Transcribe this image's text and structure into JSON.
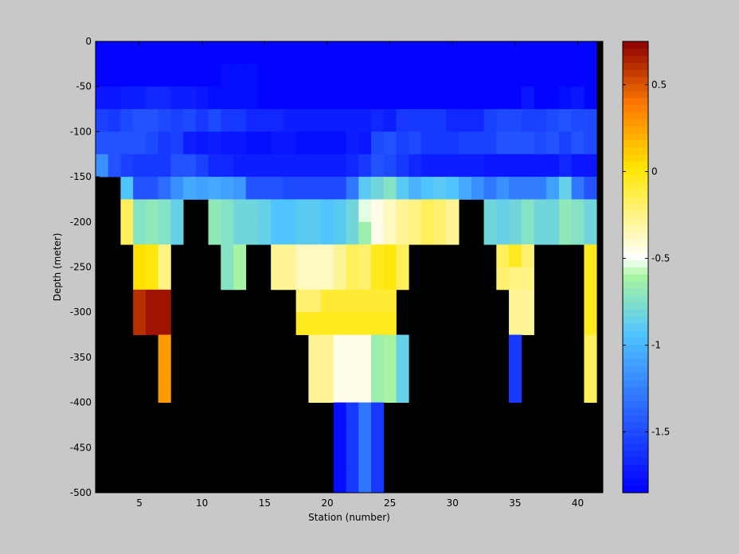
{
  "chart_data": {
    "type": "heatmap",
    "title": "",
    "xlabel": "Station (number)",
    "ylabel": "Depth (meter)",
    "xlim": [
      1.5,
      42
    ],
    "ylim": [
      -500,
      0
    ],
    "xticks": [
      5,
      10,
      15,
      20,
      25,
      30,
      35,
      40
    ],
    "yticks": [
      0,
      -50,
      -100,
      -150,
      -200,
      -250,
      -300,
      -350,
      -400,
      -450,
      -500
    ],
    "x_start_station": 2,
    "depth_levels": [
      0,
      -25,
      -50,
      -75,
      -100,
      -125,
      -150,
      -175,
      -200,
      -225,
      -250,
      -275,
      -300,
      -325,
      -350,
      -375,
      -400,
      -425,
      -450,
      -475
    ],
    "no_data_color": "#000000",
    "colorbar": {
      "clim": [
        -1.85,
        0.75
      ],
      "ticks": [
        0.5,
        0,
        -0.5,
        -1,
        -1.5
      ],
      "tick_labels": [
        "0.5",
        "0",
        "-0.5",
        "-1",
        "-1.5"
      ],
      "colormap": "jet-modified",
      "stops": [
        [
          0.0,
          "#0000ff"
        ],
        [
          0.35,
          "#4fc3ff"
        ],
        [
          0.48,
          "#a8f5a0"
        ],
        [
          0.52,
          "#ffffff"
        ],
        [
          0.72,
          "#ffe600"
        ],
        [
          0.86,
          "#ff7a00"
        ],
        [
          1.0,
          "#8b0000"
        ]
      ],
      "levels": 64
    },
    "values": [
      [
        -1.9,
        -1.9,
        -1.9,
        -1.9,
        -1.9,
        -1.9,
        -1.9,
        -1.9,
        -1.9,
        -1.9,
        -1.9,
        -1.9,
        -1.9,
        -1.9,
        -1.9,
        -1.9,
        -1.9,
        -1.9,
        -1.9,
        -1.9,
        -1.9,
        -1.9,
        -1.9,
        -1.9,
        -1.9,
        -1.9,
        -1.9,
        -1.9,
        -1.9,
        -1.9,
        -1.9,
        -1.9,
        -1.9,
        -1.9,
        -1.9,
        -1.9,
        -1.9,
        -1.9,
        -1.9,
        -1.9
      ],
      [
        -1.9,
        -1.9,
        -1.9,
        -1.9,
        -1.9,
        -1.9,
        -1.9,
        -1.9,
        -1.9,
        -1.9,
        -1.8,
        -1.8,
        -1.8,
        -1.9,
        -1.9,
        -1.9,
        -1.9,
        -1.9,
        -1.9,
        -1.9,
        -1.9,
        -1.9,
        -1.9,
        -1.9,
        -1.9,
        -1.9,
        -1.9,
        -1.9,
        -1.9,
        -1.9,
        -1.9,
        -1.9,
        -1.9,
        -1.9,
        -1.9,
        -1.9,
        -1.9,
        -1.9,
        -1.9,
        -1.9
      ],
      [
        -1.75,
        -1.75,
        -1.7,
        -1.7,
        -1.65,
        -1.65,
        -1.7,
        -1.7,
        -1.75,
        -1.8,
        -1.8,
        -1.8,
        -1.8,
        -1.85,
        -1.85,
        -1.85,
        -1.85,
        -1.85,
        -1.85,
        -1.85,
        -1.85,
        -1.85,
        -1.85,
        -1.85,
        -1.85,
        -1.85,
        -1.85,
        -1.85,
        -1.85,
        -1.85,
        -1.85,
        -1.85,
        -1.85,
        -1.85,
        -1.75,
        -1.85,
        -1.85,
        -1.8,
        -1.75,
        -1.85
      ],
      [
        -1.55,
        -1.6,
        -1.5,
        -1.45,
        -1.45,
        -1.5,
        -1.55,
        -1.5,
        -1.6,
        -1.5,
        -1.6,
        -1.6,
        -1.65,
        -1.65,
        -1.65,
        -1.7,
        -1.7,
        -1.7,
        -1.7,
        -1.7,
        -1.7,
        -1.7,
        -1.65,
        -1.7,
        -1.6,
        -1.6,
        -1.6,
        -1.6,
        -1.65,
        -1.65,
        -1.65,
        -1.55,
        -1.5,
        -1.5,
        -1.55,
        -1.55,
        -1.5,
        -1.45,
        -1.5,
        -1.5
      ],
      [
        -1.45,
        -1.45,
        -1.45,
        -1.45,
        -1.5,
        -1.6,
        -1.55,
        -1.7,
        -1.75,
        -1.7,
        -1.75,
        -1.75,
        -1.8,
        -1.8,
        -1.75,
        -1.75,
        -1.8,
        -1.8,
        -1.8,
        -1.8,
        -1.7,
        -1.75,
        -1.5,
        -1.45,
        -1.55,
        -1.5,
        -1.6,
        -1.6,
        -1.6,
        -1.55,
        -1.55,
        -1.55,
        -1.45,
        -1.45,
        -1.45,
        -1.5,
        -1.45,
        -1.55,
        -1.45,
        -1.5
      ],
      [
        -1.2,
        -1.45,
        -1.55,
        -1.6,
        -1.6,
        -1.6,
        -1.45,
        -1.45,
        -1.55,
        -1.65,
        -1.65,
        -1.7,
        -1.7,
        -1.7,
        -1.7,
        -1.7,
        -1.7,
        -1.7,
        -1.7,
        -1.7,
        -1.65,
        -1.6,
        -1.45,
        -1.5,
        -1.6,
        -1.65,
        -1.7,
        -1.7,
        -1.7,
        -1.7,
        -1.7,
        -1.75,
        -1.75,
        -1.75,
        -1.75,
        -1.75,
        -1.75,
        -1.65,
        -1.75,
        -1.75
      ],
      [
        null,
        null,
        -0.95,
        -1.45,
        -1.45,
        -1.35,
        -1.2,
        -1.05,
        -1.1,
        -1.05,
        -1.1,
        -1.15,
        -1.45,
        -1.45,
        -1.45,
        -1.5,
        -1.5,
        -1.5,
        -1.5,
        -1.5,
        -1.3,
        -0.9,
        -0.8,
        -0.75,
        -0.9,
        -1.0,
        -0.95,
        -0.9,
        -0.95,
        -1.05,
        -1.2,
        -1.3,
        -1.2,
        -1.25,
        -1.25,
        -1.25,
        -1.1,
        -0.85,
        -1.3,
        -1.45
      ],
      [
        null,
        null,
        -0.15,
        -0.75,
        -0.7,
        -0.75,
        -0.85,
        null,
        null,
        -0.7,
        -0.75,
        -0.8,
        -0.8,
        -0.85,
        -0.95,
        -0.95,
        -0.9,
        -0.9,
        -0.95,
        -0.9,
        -0.8,
        -0.55,
        -0.45,
        -0.35,
        -0.3,
        -0.25,
        -0.15,
        -0.2,
        -0.3,
        null,
        null,
        -0.8,
        -0.85,
        -0.8,
        -0.75,
        -0.8,
        -0.8,
        -0.7,
        -0.75,
        -0.8
      ],
      [
        null,
        null,
        -0.15,
        -0.75,
        -0.7,
        -0.75,
        -0.85,
        null,
        null,
        -0.7,
        -0.75,
        -0.8,
        -0.8,
        -0.85,
        -0.95,
        -0.95,
        -0.9,
        -0.9,
        -0.95,
        -0.9,
        -0.8,
        -0.65,
        -0.45,
        -0.35,
        -0.3,
        -0.25,
        -0.15,
        -0.2,
        -0.3,
        null,
        null,
        -0.8,
        -0.85,
        -0.8,
        -0.75,
        -0.8,
        -0.8,
        -0.7,
        -0.75,
        -0.8
      ],
      [
        null,
        null,
        null,
        0.05,
        0.0,
        -0.25,
        null,
        null,
        null,
        null,
        -0.75,
        -0.6,
        null,
        null,
        -0.3,
        -0.3,
        -0.35,
        -0.35,
        -0.35,
        -0.3,
        -0.15,
        -0.2,
        -0.05,
        0.0,
        -0.15,
        null,
        null,
        null,
        null,
        null,
        null,
        null,
        -0.15,
        -0.05,
        -0.2,
        null,
        null,
        null,
        null,
        -0.05
      ],
      [
        null,
        null,
        null,
        0.05,
        0.0,
        -0.25,
        null,
        null,
        null,
        null,
        -0.75,
        -0.6,
        null,
        null,
        -0.3,
        -0.3,
        -0.35,
        -0.35,
        -0.35,
        -0.3,
        -0.15,
        -0.2,
        -0.05,
        0.0,
        -0.15,
        null,
        null,
        null,
        null,
        null,
        null,
        null,
        -0.2,
        -0.25,
        -0.25,
        null,
        null,
        null,
        null,
        -0.05
      ],
      [
        null,
        null,
        null,
        0.6,
        0.7,
        0.7,
        null,
        null,
        null,
        null,
        null,
        null,
        null,
        null,
        null,
        null,
        -0.2,
        -0.2,
        -0.1,
        -0.1,
        -0.1,
        -0.1,
        -0.1,
        -0.1,
        null,
        null,
        null,
        null,
        null,
        null,
        null,
        null,
        null,
        -0.3,
        -0.3,
        null,
        null,
        null,
        null,
        -0.05
      ],
      [
        null,
        null,
        null,
        0.6,
        0.7,
        0.7,
        null,
        null,
        null,
        null,
        null,
        null,
        null,
        null,
        null,
        null,
        -0.05,
        -0.05,
        -0.05,
        -0.05,
        -0.05,
        -0.05,
        -0.05,
        -0.05,
        null,
        null,
        null,
        null,
        null,
        null,
        null,
        null,
        null,
        -0.3,
        -0.3,
        null,
        null,
        null,
        null,
        -0.05
      ],
      [
        null,
        null,
        null,
        null,
        null,
        0.3,
        null,
        null,
        null,
        null,
        null,
        null,
        null,
        null,
        null,
        null,
        null,
        -0.3,
        -0.3,
        -0.45,
        -0.45,
        -0.45,
        -0.65,
        -0.6,
        -0.85,
        null,
        null,
        null,
        null,
        null,
        null,
        null,
        null,
        -1.6,
        null,
        null,
        null,
        null,
        null,
        -0.15
      ],
      [
        null,
        null,
        null,
        null,
        null,
        0.3,
        null,
        null,
        null,
        null,
        null,
        null,
        null,
        null,
        null,
        null,
        null,
        -0.3,
        -0.3,
        -0.45,
        -0.45,
        -0.45,
        -0.65,
        -0.6,
        -0.85,
        null,
        null,
        null,
        null,
        null,
        null,
        null,
        null,
        -1.6,
        null,
        null,
        null,
        null,
        null,
        -0.15
      ],
      [
        null,
        null,
        null,
        null,
        null,
        0.3,
        null,
        null,
        null,
        null,
        null,
        null,
        null,
        null,
        null,
        null,
        null,
        -0.3,
        -0.3,
        -0.45,
        -0.45,
        -0.45,
        -0.65,
        -0.6,
        -0.85,
        null,
        null,
        null,
        null,
        null,
        null,
        null,
        null,
        -1.6,
        null,
        null,
        null,
        null,
        null,
        -0.15
      ],
      [
        null,
        null,
        null,
        null,
        null,
        null,
        null,
        null,
        null,
        null,
        null,
        null,
        null,
        null,
        null,
        null,
        null,
        null,
        null,
        -1.8,
        -1.6,
        -1.3,
        -1.6,
        null,
        null,
        null,
        null,
        null,
        null,
        null,
        null,
        null,
        null,
        null,
        null,
        null,
        null,
        null,
        null,
        null
      ],
      [
        null,
        null,
        null,
        null,
        null,
        null,
        null,
        null,
        null,
        null,
        null,
        null,
        null,
        null,
        null,
        null,
        null,
        null,
        null,
        -1.8,
        -1.6,
        -1.3,
        -1.6,
        null,
        null,
        null,
        null,
        null,
        null,
        null,
        null,
        null,
        null,
        null,
        null,
        null,
        null,
        null,
        null,
        null
      ],
      [
        null,
        null,
        null,
        null,
        null,
        null,
        null,
        null,
        null,
        null,
        null,
        null,
        null,
        null,
        null,
        null,
        null,
        null,
        null,
        -1.8,
        -1.6,
        -1.3,
        -1.6,
        null,
        null,
        null,
        null,
        null,
        null,
        null,
        null,
        null,
        null,
        null,
        null,
        null,
        null,
        null,
        null,
        null
      ],
      [
        null,
        null,
        null,
        null,
        null,
        null,
        null,
        null,
        null,
        null,
        null,
        null,
        null,
        null,
        null,
        null,
        null,
        null,
        null,
        -1.8,
        -1.6,
        -1.3,
        -1.6,
        null,
        null,
        null,
        null,
        null,
        null,
        null,
        null,
        null,
        null,
        null,
        null,
        null,
        null,
        null,
        null,
        null
      ]
    ]
  }
}
